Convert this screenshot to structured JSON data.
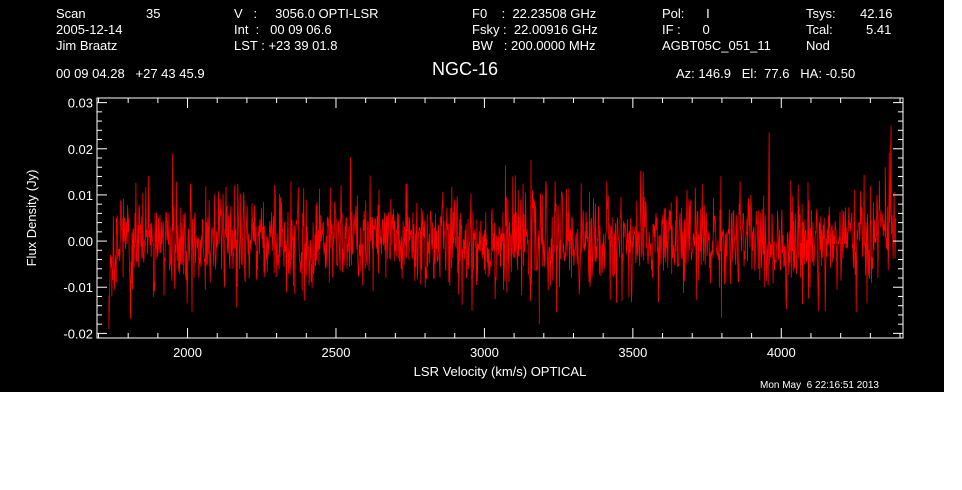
{
  "header": {
    "scan_label": "Scan",
    "scan_value": "35",
    "date": "2005-12-14",
    "observer": "Jim Braatz",
    "v_line": "V   :     3056.0 OPTI-LSR",
    "int_line": "Int  :   00 09 06.6",
    "lst_line": "LST : +23 39 01.8",
    "f0_line": "F0    :  22.23508 GHz",
    "fsky_line": "Fsky :  22.00916 GHz",
    "bw_line": "BW   : 200.0000 MHz",
    "pol_line": "Pol:      I",
    "if_line": "IF :      0",
    "project": "AGBT05C_051_11",
    "tsys_label": "Tsys:",
    "tsys_value": "42.16",
    "tcal_label": "Tcal:",
    "tcal_value": "5.41",
    "mode": "Nod",
    "coords": "00 09 04.28   +27 43 45.9",
    "source": "NGC-16",
    "az_el_ha": "Az: 146.9   El:  77.6   HA: -0.50",
    "timestamp": "Mon May  6 22:16:51 2013"
  },
  "colors": {
    "background": "#000000",
    "axes": "#ffffff",
    "spectrum": "#ff0000"
  },
  "chart_data": {
    "type": "line",
    "title": "NGC-16",
    "xlabel": "LSR Velocity (km/s) OPTICAL",
    "ylabel": "Flux Density (Jy)",
    "xlim": [
      1695,
      4410
    ],
    "ylim": [
      -0.021,
      0.031
    ],
    "x_ticks": [
      2000,
      2500,
      3000,
      3500,
      4000
    ],
    "x_tick_labels": [
      "2000",
      "2500",
      "3000",
      "3500",
      "4000"
    ],
    "y_ticks": [
      -0.02,
      -0.01,
      0.0,
      0.01,
      0.02,
      0.03
    ],
    "y_tick_labels": [
      "-0.02",
      "-0.01",
      "0.00",
      "0.01",
      "0.02",
      "0.03"
    ],
    "grid": false,
    "series": [
      {
        "x_start": 1735,
        "x_end": 4385,
        "noise_rms": 0.0055,
        "baseline": 0.0,
        "values_note_points": [
          [
            1735,
            -0.019
          ],
          [
            1745,
            -0.012
          ],
          [
            1760,
            0.005
          ],
          [
            1800,
            0.002
          ],
          [
            1950,
            0.019
          ],
          [
            2500,
            0.0
          ],
          [
            3000,
            0.0
          ],
          [
            3185,
            -0.018
          ],
          [
            3500,
            0.0
          ],
          [
            4000,
            0.0
          ],
          [
            4300,
            0.012
          ],
          [
            4350,
            0.016
          ],
          [
            4370,
            0.025
          ],
          [
            4385,
            0.005
          ]
        ]
      }
    ]
  }
}
